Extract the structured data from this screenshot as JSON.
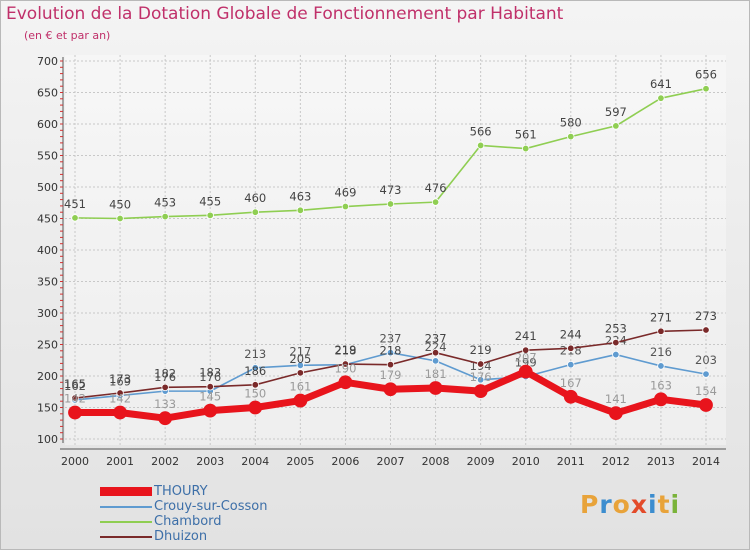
{
  "header": {
    "title": "Evolution de la Dotation Globale de Fonctionnement par Habitant",
    "subtitle": "(en € et par an)"
  },
  "brand": {
    "text": "Proxiti",
    "colors": [
      "#e8a33a",
      "#3c8dcf",
      "#e8a33a",
      "#e34b2a",
      "#3c8dcf",
      "#e8a33a",
      "#7ab33a"
    ]
  },
  "chart_data": {
    "type": "line",
    "x": [
      "2000",
      "2001",
      "2002",
      "2003",
      "2004",
      "2005",
      "2006",
      "2007",
      "2008",
      "2009",
      "2010",
      "2011",
      "2012",
      "2013",
      "2014"
    ],
    "ylim": [
      100,
      700
    ],
    "yticks": [
      100,
      150,
      200,
      250,
      300,
      350,
      400,
      450,
      500,
      550,
      600,
      650,
      700
    ],
    "grid": true,
    "legend_position": "bottom-left",
    "series": [
      {
        "name": "THOURY",
        "color": "#e8141c",
        "emphasis": true,
        "label_color": "#9a9a9a",
        "values": [
          142,
          142,
          133,
          145,
          150,
          161,
          190,
          179,
          181,
          176,
          207,
          167,
          141,
          163,
          154
        ]
      },
      {
        "name": "Crouy-sur-Cosson",
        "color": "#5f9bd0",
        "emphasis": false,
        "label_color": "#555555",
        "values": [
          162,
          169,
          176,
          176,
          213,
          217,
          218,
          237,
          224,
          194,
          199,
          218,
          234,
          216,
          203
        ]
      },
      {
        "name": "Chambord",
        "color": "#8fce52",
        "emphasis": false,
        "label_color": "#444444",
        "values": [
          451,
          450,
          453,
          455,
          460,
          463,
          469,
          473,
          476,
          566,
          561,
          580,
          597,
          641,
          656
        ]
      },
      {
        "name": "Dhuizon",
        "color": "#7a2a2a",
        "emphasis": false,
        "label_color": "#444444",
        "values": [
          165,
          173,
          182,
          183,
          186,
          205,
          219,
          218,
          237,
          219,
          241,
          244,
          253,
          271,
          273
        ]
      }
    ]
  }
}
